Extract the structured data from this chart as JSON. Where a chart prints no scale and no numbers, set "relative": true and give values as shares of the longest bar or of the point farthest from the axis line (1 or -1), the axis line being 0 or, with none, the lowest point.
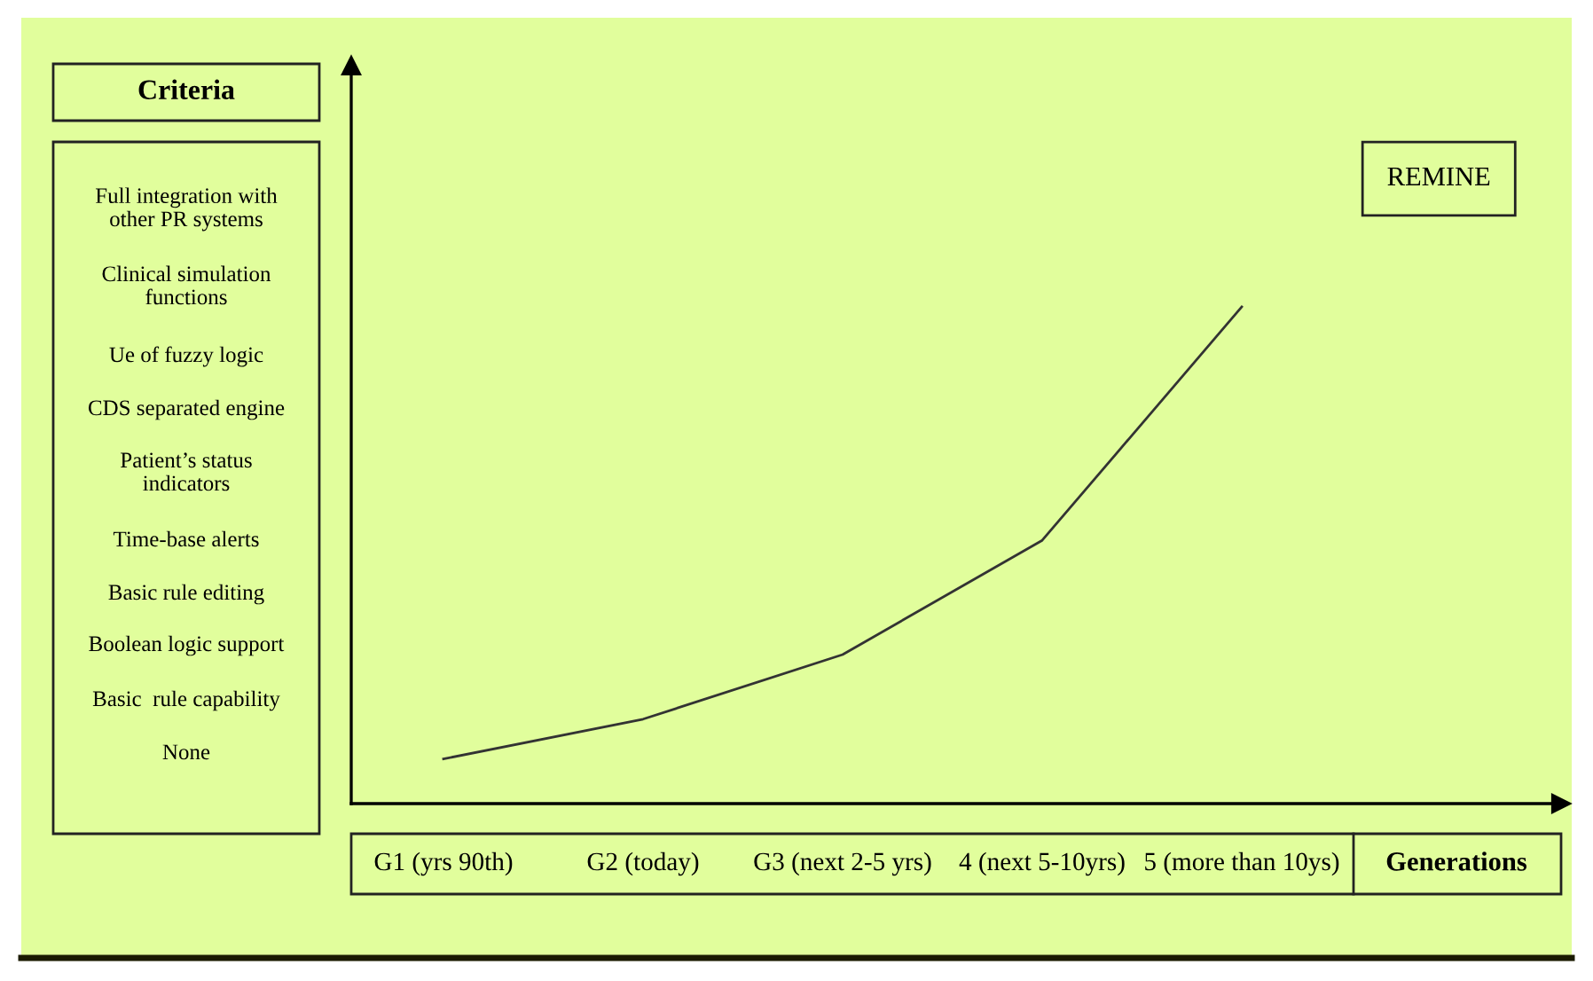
{
  "chart_data": {
    "type": "line",
    "relative": true,
    "xlabel": "Generations",
    "categories": [
      "G1 (yrs 90th)",
      "G2 (today)",
      "G3 (next 2-5 yrs)",
      "4 (next 5-10yrs)",
      "5 (more than 10ys)"
    ],
    "series": [
      {
        "name": "REMINE",
        "color": "#333333",
        "values": [
          0.09,
          0.17,
          0.3,
          0.53,
          1
        ]
      }
    ],
    "annotations": [
      "Criteria",
      "Full integration with\nother PR systems",
      "Clinical simulation\nfunctions",
      "Ue of fuzzy logic",
      "CDS separated engine",
      "Patient’s status\nindicators",
      "Time-base alerts",
      "Basic rule editing",
      "Boolean logic support",
      "Basic  rule capability",
      "None"
    ],
    "line_style": "solid",
    "marker": "none"
  }
}
